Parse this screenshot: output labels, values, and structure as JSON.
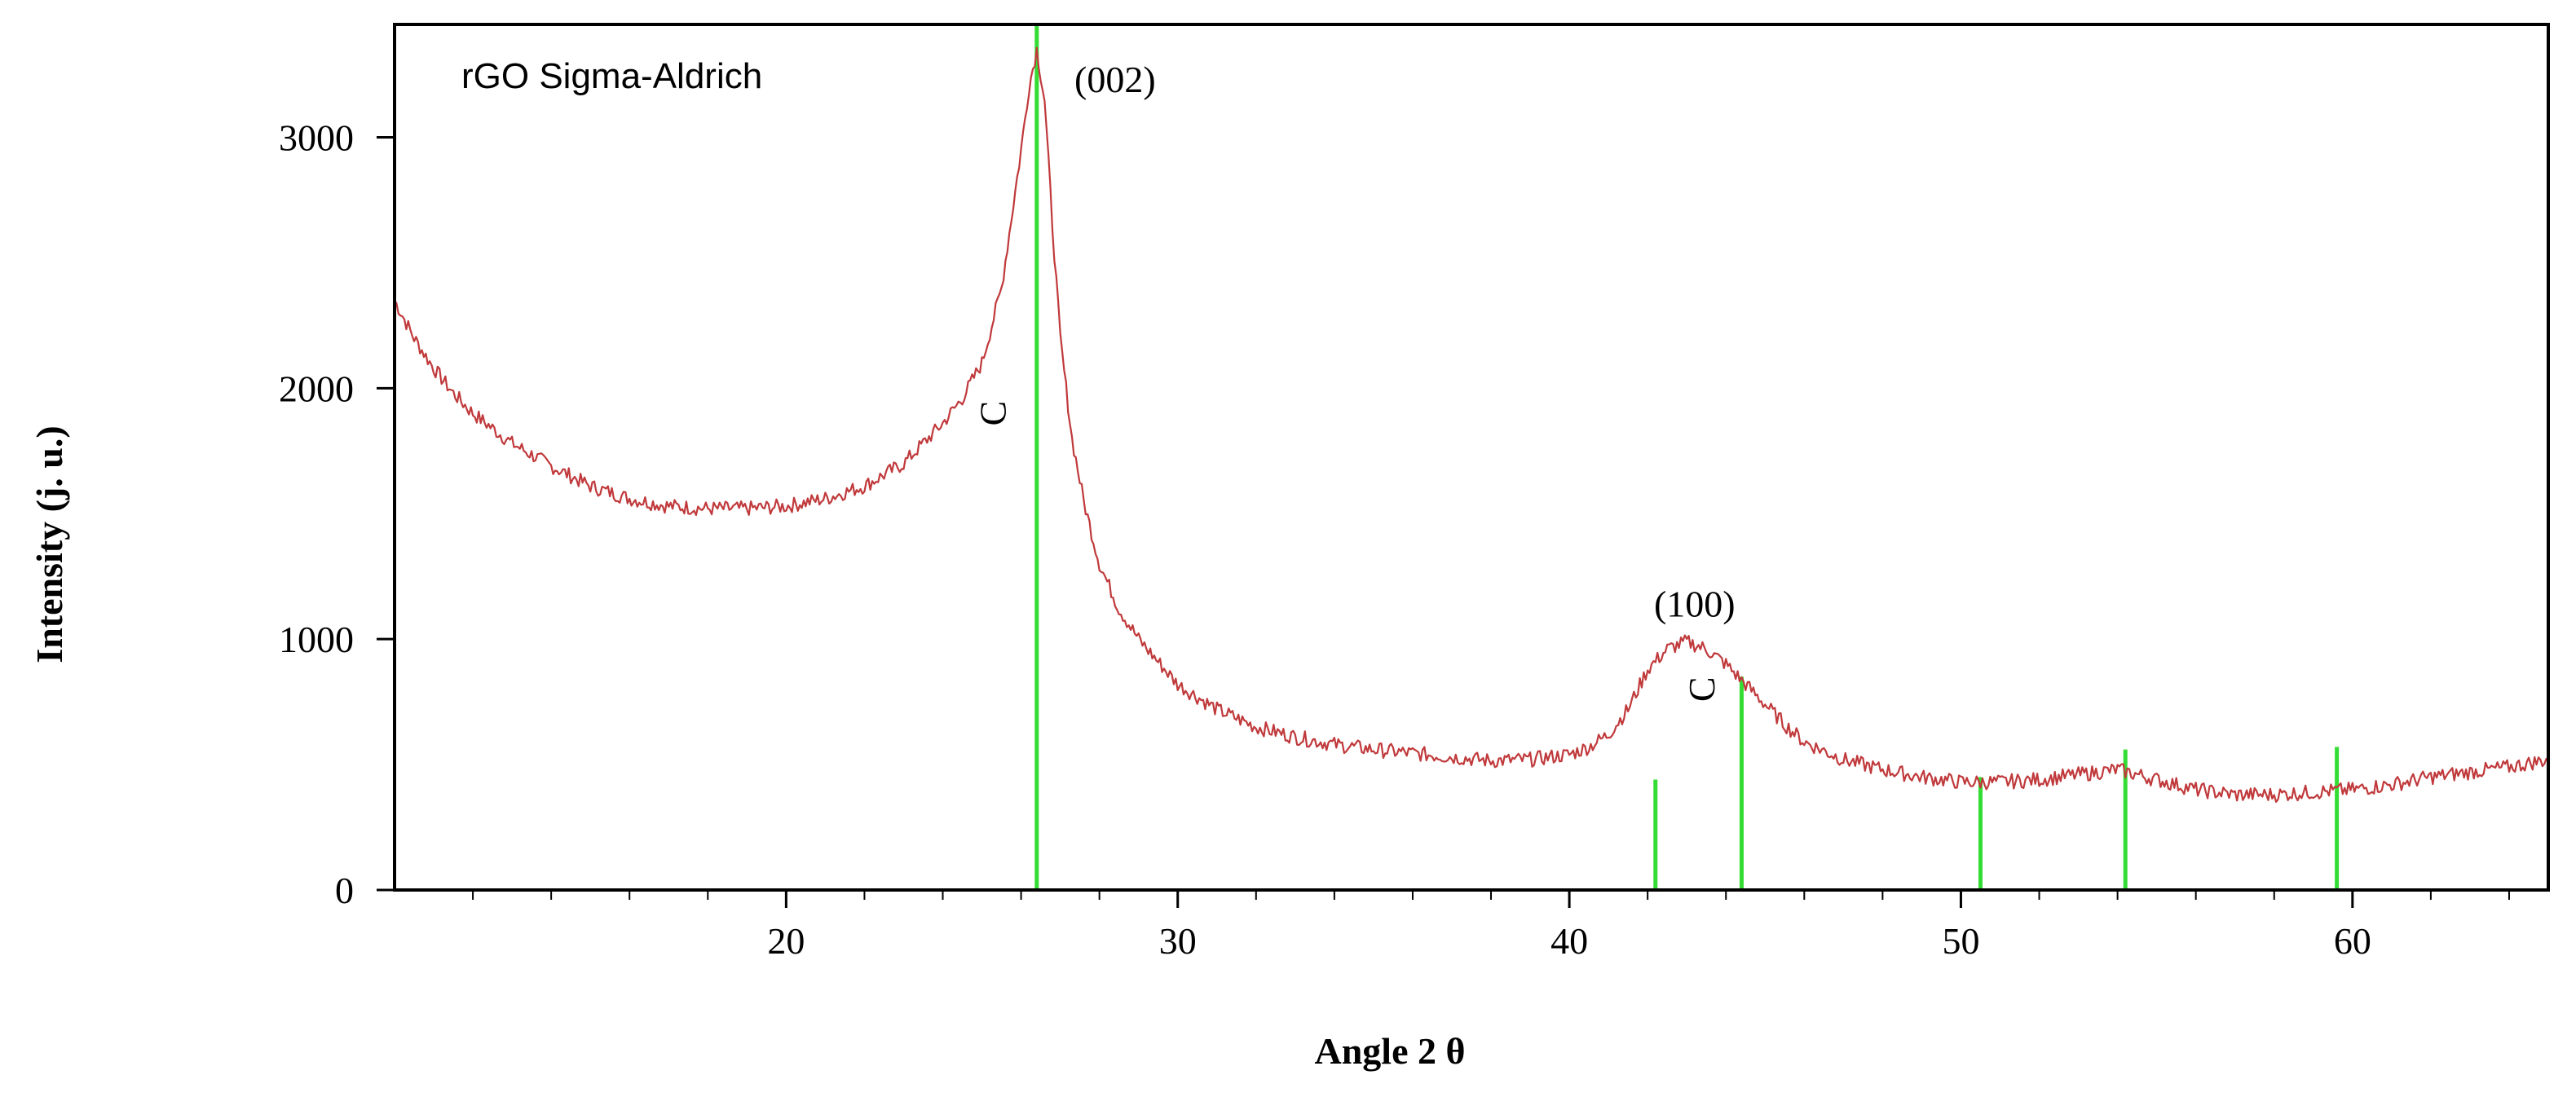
{
  "chart_data": {
    "type": "line",
    "title": "rGO Sigma-Aldrich",
    "xlabel": "Angle 2 θ",
    "ylabel": "Intensity (j. u.)",
    "xlim": [
      10,
      65
    ],
    "ylim": [
      0,
      3450
    ],
    "x_ticks": [
      20,
      30,
      40,
      50,
      60
    ],
    "x_minor_step": 2,
    "y_ticks": [
      0,
      1000,
      2000,
      3000
    ],
    "grid": false,
    "series": [
      {
        "color": "#c0393b",
        "x": [
          10.0,
          10.5,
          11.0,
          11.5,
          12.0,
          13.0,
          14.0,
          15.0,
          16.0,
          17.0,
          18.0,
          19.0,
          20.0,
          21.0,
          22.0,
          23.0,
          24.0,
          24.5,
          25.0,
          25.5,
          26.0,
          26.2,
          26.4,
          26.6,
          26.8,
          27.0,
          27.3,
          27.6,
          28.0,
          28.5,
          29.0,
          30.0,
          31.0,
          32.0,
          33.0,
          34.0,
          35.0,
          36.0,
          37.0,
          38.0,
          39.0,
          40.0,
          40.5,
          41.0,
          41.5,
          42.0,
          42.5,
          43.0,
          43.5,
          44.0,
          44.5,
          45.0,
          45.5,
          46.0,
          47.0,
          48.0,
          49.0,
          50.0,
          51.0,
          52.0,
          53.0,
          54.0,
          55.0,
          56.0,
          57.0,
          58.0,
          59.0,
          60.0,
          61.0,
          62.0,
          63.0,
          64.0,
          65.0
        ],
        "y": [
          2350,
          2200,
          2080,
          1980,
          1900,
          1780,
          1690,
          1610,
          1560,
          1530,
          1520,
          1520,
          1530,
          1560,
          1610,
          1700,
          1860,
          1960,
          2100,
          2400,
          2950,
          3200,
          3350,
          3150,
          2650,
          2200,
          1800,
          1550,
          1300,
          1120,
          1000,
          820,
          720,
          650,
          610,
          580,
          560,
          545,
          530,
          515,
          520,
          540,
          570,
          620,
          720,
          880,
          960,
          990,
          960,
          900,
          820,
          740,
          660,
          590,
          520,
          480,
          450,
          430,
          430,
          440,
          460,
          480,
          440,
          400,
          380,
          380,
          390,
          400,
          420,
          450,
          470,
          490,
          520
        ]
      }
    ],
    "reference_lines": {
      "color": "#33dd33",
      "x": [
        26.4,
        42.2,
        44.4,
        50.5,
        54.2,
        59.6
      ],
      "y": [
        3450,
        440,
        850,
        450,
        560,
        570
      ]
    },
    "annotations": [
      {
        "text": "(002)",
        "x": 28.4,
        "y": 3180
      },
      {
        "text": "(100)",
        "x": 43.2,
        "y": 1090
      },
      {
        "text": "C",
        "x": 25.6,
        "y": 1900,
        "rotated": true
      },
      {
        "text": "C",
        "x": 43.7,
        "y": 800,
        "rotated": true
      }
    ]
  }
}
